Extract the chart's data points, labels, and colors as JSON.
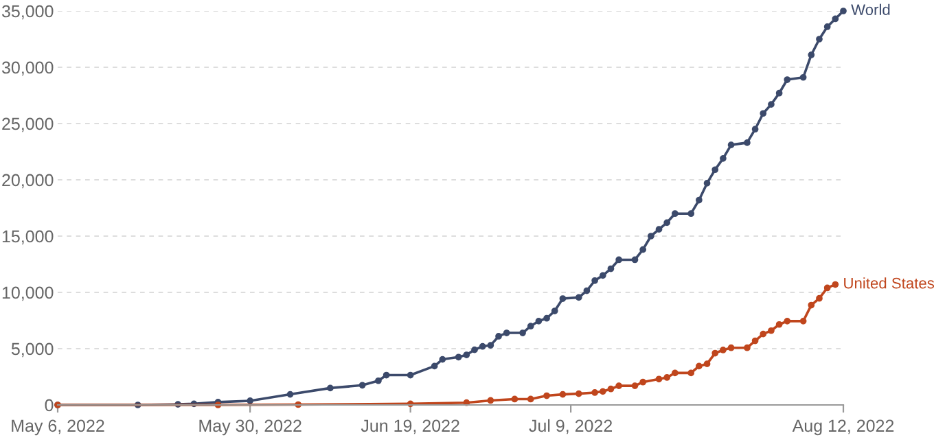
{
  "chart_data": {
    "type": "line",
    "series": [
      {
        "name": "World",
        "color": "#3c4a6b",
        "x": [
          "2022-05-06",
          "2022-05-16",
          "2022-05-21",
          "2022-05-23",
          "2022-05-26",
          "2022-05-30",
          "2022-06-04",
          "2022-06-09",
          "2022-06-13",
          "2022-06-15",
          "2022-06-16",
          "2022-06-19",
          "2022-06-22",
          "2022-06-23",
          "2022-06-25",
          "2022-06-26",
          "2022-06-27",
          "2022-06-28",
          "2022-06-29",
          "2022-06-30",
          "2022-07-01",
          "2022-07-03",
          "2022-07-04",
          "2022-07-05",
          "2022-07-06",
          "2022-07-07",
          "2022-07-08",
          "2022-07-10",
          "2022-07-11",
          "2022-07-12",
          "2022-07-13",
          "2022-07-14",
          "2022-07-15",
          "2022-07-17",
          "2022-07-18",
          "2022-07-19",
          "2022-07-20",
          "2022-07-21",
          "2022-07-22",
          "2022-07-24",
          "2022-07-25",
          "2022-07-26",
          "2022-07-27",
          "2022-07-28",
          "2022-07-29",
          "2022-07-31",
          "2022-08-01",
          "2022-08-02",
          "2022-08-03",
          "2022-08-04",
          "2022-08-05",
          "2022-08-07",
          "2022-08-08",
          "2022-08-09",
          "2022-08-10",
          "2022-08-11",
          "2022-08-12"
        ],
        "values": [
          0,
          0,
          50,
          100,
          250,
          370,
          940,
          1500,
          1750,
          2150,
          2650,
          2650,
          3450,
          4050,
          4250,
          4450,
          4900,
          5200,
          5300,
          6100,
          6400,
          6400,
          7000,
          7450,
          7700,
          8350,
          9450,
          9550,
          10150,
          11050,
          11500,
          12100,
          12900,
          12900,
          13800,
          15000,
          15600,
          16200,
          17000,
          17000,
          18200,
          19700,
          20900,
          21900,
          23100,
          23300,
          24500,
          25900,
          26700,
          27700,
          28900,
          29100,
          31100,
          32500,
          33600,
          34300,
          35000
        ]
      },
      {
        "name": "United States",
        "color": "#c0461d",
        "x": [
          "2022-05-06",
          "2022-05-26",
          "2022-06-05",
          "2022-06-19",
          "2022-06-26",
          "2022-06-29",
          "2022-07-02",
          "2022-07-04",
          "2022-07-06",
          "2022-07-08",
          "2022-07-10",
          "2022-07-12",
          "2022-07-13",
          "2022-07-14",
          "2022-07-15",
          "2022-07-17",
          "2022-07-18",
          "2022-07-20",
          "2022-07-21",
          "2022-07-22",
          "2022-07-24",
          "2022-07-25",
          "2022-07-26",
          "2022-07-27",
          "2022-07-28",
          "2022-07-29",
          "2022-07-31",
          "2022-08-01",
          "2022-08-02",
          "2022-08-03",
          "2022-08-04",
          "2022-08-05",
          "2022-08-07",
          "2022-08-08",
          "2022-08-09",
          "2022-08-10",
          "2022-08-11"
        ],
        "values": [
          0,
          0,
          30,
          100,
          200,
          400,
          520,
          520,
          820,
          940,
          1000,
          1100,
          1200,
          1420,
          1700,
          1700,
          2030,
          2300,
          2440,
          2840,
          2840,
          3450,
          3650,
          4600,
          4880,
          5080,
          5080,
          5700,
          6300,
          6600,
          7150,
          7450,
          7450,
          8870,
          9470,
          10400,
          10700
        ]
      }
    ],
    "xlim": [
      "2022-05-06",
      "2022-08-12"
    ],
    "xticks": [
      {
        "value": "2022-05-06",
        "label": "May 6, 2022"
      },
      {
        "value": "2022-05-30",
        "label": "May 30, 2022"
      },
      {
        "value": "2022-06-19",
        "label": "Jun 19, 2022"
      },
      {
        "value": "2022-07-09",
        "label": "Jul 9, 2022"
      },
      {
        "value": "2022-08-12",
        "label": "Aug 12, 2022"
      }
    ],
    "ylim": [
      0,
      35000
    ],
    "yticks": [
      {
        "value": 0,
        "label": "0"
      },
      {
        "value": 5000,
        "label": "5,000"
      },
      {
        "value": 10000,
        "label": "10,000"
      },
      {
        "value": 15000,
        "label": "15,000"
      },
      {
        "value": 20000,
        "label": "20,000"
      },
      {
        "value": 25000,
        "label": "25,000"
      },
      {
        "value": 30000,
        "label": "30,000"
      },
      {
        "value": 35000,
        "label": "35,000"
      }
    ],
    "grid": "y",
    "legend": false,
    "marker": "circle",
    "line_style": "solid"
  }
}
